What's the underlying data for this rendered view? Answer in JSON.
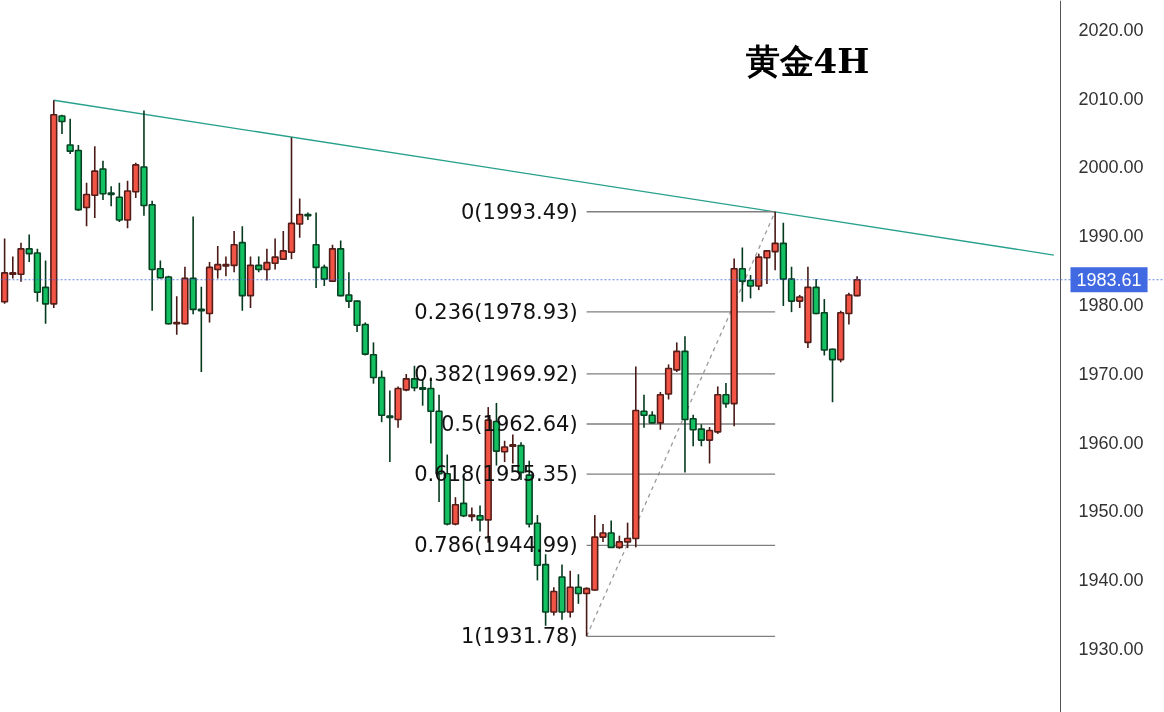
{
  "chart_data": {
    "type": "candlestick",
    "title": "黄金4H",
    "categories": [
      null,
      null,
      null,
      null,
      null,
      null,
      null,
      null,
      null,
      null,
      null,
      null,
      null,
      null,
      null,
      null,
      null,
      null,
      null,
      null,
      null,
      null,
      null,
      null,
      null,
      null,
      null,
      null,
      null,
      null,
      null,
      null,
      null,
      null,
      null,
      null,
      null,
      null,
      null,
      null,
      null,
      null,
      null,
      null,
      null,
      null,
      null,
      null,
      null,
      null,
      null,
      null,
      null,
      null,
      null,
      null,
      null,
      null,
      null,
      null,
      null,
      null,
      null,
      null,
      null,
      null,
      null,
      null,
      null,
      null,
      null,
      null,
      null,
      null,
      null,
      null,
      null,
      null,
      null,
      null,
      null,
      null,
      null,
      null,
      null,
      null,
      null,
      null,
      null,
      null,
      null,
      null,
      null,
      null,
      null,
      null,
      null,
      null,
      null,
      null,
      null,
      null,
      null,
      null,
      null,
      null,
      null,
      null,
      null,
      null,
      null,
      null,
      null,
      null,
      null,
      null,
      null,
      null,
      null,
      null,
      null,
      null,
      null,
      null,
      null,
      null,
      null,
      null,
      null,
      null,
      null,
      null,
      null,
      null,
      null,
      null,
      null,
      null,
      null,
      null,
      null,
      null
    ],
    "ohlc": [
      [
        1980.4,
        1989.6,
        1980.1,
        1984.6
      ],
      [
        1984.4,
        1987.0,
        1983.8,
        1984.6
      ],
      [
        1984.4,
        1989.0,
        1983.3,
        1988.1
      ],
      [
        1988.1,
        1990.2,
        1986.2,
        1987.4
      ],
      [
        1987.5,
        1988.1,
        1980.4,
        1981.8
      ],
      [
        1982.5,
        1986.4,
        1977.2,
        1980.1
      ],
      [
        1980.1,
        2009.7,
        1979.5,
        2007.6
      ],
      [
        2007.4,
        2007.6,
        2004.8,
        2006.6
      ],
      [
        2003.2,
        2007.0,
        2001.9,
        2002.3
      ],
      [
        2002.4,
        2003.2,
        1993.6,
        1993.8
      ],
      [
        1994.1,
        1997.7,
        1991.4,
        1996.0
      ],
      [
        1995.9,
        2003.0,
        1992.6,
        1999.4
      ],
      [
        1999.7,
        2000.9,
        1995.2,
        1996.1
      ],
      [
        1996.2,
        1997.2,
        1994.3,
        1996.0
      ],
      [
        1995.6,
        1997.7,
        1992.0,
        1992.3
      ],
      [
        1992.3,
        1998.0,
        1991.1,
        1996.5
      ],
      [
        1996.4,
        2000.6,
        1995.5,
        2000.3
      ],
      [
        2000.0,
        2008.2,
        1992.9,
        1994.4
      ],
      [
        1994.5,
        1995.1,
        1979.1,
        1985.1
      ],
      [
        1985.2,
        1986.4,
        1983.8,
        1983.9
      ],
      [
        1984.0,
        1984.2,
        1977.1,
        1977.2
      ],
      [
        1977.2,
        1981.2,
        1975.6,
        1977.4
      ],
      [
        1977.2,
        1985.5,
        1977.1,
        1983.8
      ],
      [
        1983.8,
        1992.8,
        1978.6,
        1979.3
      ],
      [
        1979.3,
        1982.6,
        1970.2,
        1979.1
      ],
      [
        1978.7,
        1986.2,
        1977.4,
        1985.4
      ],
      [
        1985.1,
        1988.5,
        1983.8,
        1985.8
      ],
      [
        1985.6,
        1987.0,
        1984.1,
        1985.8
      ],
      [
        1985.7,
        1990.7,
        1984.7,
        1988.7
      ],
      [
        1989.0,
        1991.4,
        1979.1,
        1981.3
      ],
      [
        1981.3,
        1987.0,
        1979.5,
        1985.7
      ],
      [
        1985.7,
        1987.0,
        1984.7,
        1985.1
      ],
      [
        1985.1,
        1988.1,
        1983.5,
        1986.1
      ],
      [
        1986.0,
        1989.6,
        1985.1,
        1986.9
      ],
      [
        1986.6,
        1990.7,
        1986.5,
        1987.8
      ],
      [
        1987.6,
        2004.3,
        1986.6,
        1991.8
      ],
      [
        1991.7,
        1995.4,
        1989.7,
        1993.1
      ],
      [
        1993.1,
        1993.4,
        1992.3,
        1992.9
      ],
      [
        1988.7,
        1993.4,
        1982.4,
        1985.4
      ],
      [
        1985.4,
        1985.8,
        1982.7,
        1983.7
      ],
      [
        1983.4,
        1988.7,
        1983.3,
        1988.1
      ],
      [
        1988.1,
        1989.3,
        1981.2,
        1981.3
      ],
      [
        1981.4,
        1984.7,
        1979.5,
        1980.5
      ],
      [
        1980.5,
        1980.6,
        1976.0,
        1977.0
      ],
      [
        1977.1,
        1977.4,
        1972.6,
        1972.8
      ],
      [
        1972.7,
        1974.5,
        1968.5,
        1969.4
      ],
      [
        1969.4,
        1970.4,
        1962.9,
        1963.9
      ],
      [
        1963.8,
        1967.5,
        1957.1,
        1963.6
      ],
      [
        1963.3,
        1968.1,
        1962.1,
        1967.8
      ],
      [
        1967.6,
        1969.9,
        1967.4,
        1969.2
      ],
      [
        1969.2,
        1971.1,
        1967.4,
        1967.9
      ],
      [
        1967.9,
        1969.2,
        1965.3,
        1967.7
      ],
      [
        1967.8,
        1969.4,
        1959.8,
        1964.5
      ],
      [
        1964.5,
        1966.9,
        1951.3,
        1955.4
      ],
      [
        1955.4,
        1958.2,
        1947.9,
        1948.1
      ],
      [
        1948.1,
        1952.0,
        1947.9,
        1950.9
      ],
      [
        1951.1,
        1955.4,
        1949.1,
        1949.3
      ],
      [
        1949.2,
        1950.5,
        1948.5,
        1949.4
      ],
      [
        1949.3,
        1950.8,
        1947.0,
        1948.7
      ],
      [
        1948.7,
        1965.1,
        1945.4,
        1963.2
      ],
      [
        1963.0,
        1965.7,
        1956.6,
        1958.7
      ],
      [
        1958.6,
        1960.2,
        1957.1,
        1959.3
      ],
      [
        1959.4,
        1961.1,
        1956.9,
        1959.6
      ],
      [
        1959.5,
        1960.0,
        1954.5,
        1955.6
      ],
      [
        1955.2,
        1957.3,
        1947.6,
        1948.1
      ],
      [
        1948.2,
        1949.4,
        1939.9,
        1942.1
      ],
      [
        1942.2,
        1943.7,
        1933.3,
        1935.3
      ],
      [
        1935.3,
        1938.9,
        1934.8,
        1938.3
      ],
      [
        1940.4,
        1942.2,
        1934.2,
        1935.3
      ],
      [
        1935.3,
        1941.3,
        1934.5,
        1938.9
      ],
      [
        1938.9,
        1940.8,
        1936.5,
        1938.0
      ],
      [
        1938.0,
        1938.9,
        1931.78,
        1938.7
      ],
      [
        1938.5,
        1949.4,
        1938.4,
        1946.2
      ],
      [
        1946.2,
        1948.1,
        1945.5,
        1946.8
      ],
      [
        1946.8,
        1948.6,
        1944.6,
        1944.7
      ],
      [
        1944.7,
        1946.4,
        1944.5,
        1945.5
      ],
      [
        1945.5,
        1948.3,
        1944.6,
        1946.0
      ],
      [
        1946.0,
        1971.0,
        1944.7,
        1964.6
      ],
      [
        1964.5,
        1966.9,
        1962.1,
        1963.9
      ],
      [
        1963.9,
        1964.5,
        1962.7,
        1962.8
      ],
      [
        1962.8,
        1967.3,
        1961.8,
        1966.9
      ],
      [
        1967.0,
        1971.3,
        1966.2,
        1970.7
      ],
      [
        1970.5,
        1974.5,
        1970.2,
        1973.2
      ],
      [
        1973.2,
        1975.4,
        1955.6,
        1963.3
      ],
      [
        1963.4,
        1964.0,
        1959.4,
        1961.8
      ],
      [
        1961.9,
        1962.6,
        1959.4,
        1960.3
      ],
      [
        1960.3,
        1962.2,
        1956.9,
        1961.7
      ],
      [
        1961.5,
        1968.1,
        1961.2,
        1966.9
      ],
      [
        1966.9,
        1968.6,
        1965.0,
        1965.6
      ],
      [
        1965.6,
        1986.7,
        1962.3,
        1985.2
      ],
      [
        1985.2,
        1988.3,
        1980.4,
        1983.4
      ],
      [
        1983.5,
        1984.3,
        1980.9,
        1982.7
      ],
      [
        1982.7,
        1987.4,
        1982.1,
        1986.9
      ],
      [
        1986.8,
        1987.9,
        1983.0,
        1987.8
      ],
      [
        1987.7,
        1993.49,
        1985.0,
        1988.9
      ],
      [
        1988.9,
        1991.9,
        1979.8,
        1983.7
      ],
      [
        1983.7,
        1985.5,
        1978.9,
        1980.5
      ],
      [
        1980.5,
        1981.4,
        1979.5,
        1981.1
      ],
      [
        1974.5,
        1985.5,
        1973.7,
        1982.5
      ],
      [
        1982.5,
        1983.7,
        1978.6,
        1978.7
      ],
      [
        1978.8,
        1980.8,
        1972.6,
        1973.4
      ],
      [
        1973.5,
        1973.6,
        1965.8,
        1972.0
      ],
      [
        1972.0,
        1979.1,
        1971.6,
        1978.8
      ],
      [
        1978.7,
        1981.7,
        1977.1,
        1981.4
      ],
      [
        1981.3,
        1984.1,
        1981.2,
        1983.61
      ],
      null,
      null,
      null,
      null,
      null,
      null,
      null,
      null,
      null,
      null,
      null,
      null,
      null,
      null,
      null,
      null,
      null,
      null,
      null,
      null,
      null,
      null,
      null,
      null,
      null,
      null,
      null,
      null,
      null,
      null,
      null,
      null,
      null,
      null,
      null,
      null,
      null
    ],
    "colors": [
      "#f25546",
      "#f25546",
      "#f25546",
      "#13c162",
      "#13c162",
      "#13c162",
      "#f25546",
      "#13c162",
      "#13c162",
      "#13c162",
      "#f25546",
      "#f25546",
      "#13c162",
      "#13c162",
      "#13c162",
      "#f25546",
      "#f25546",
      "#13c162",
      "#13c162",
      "#13c162",
      "#13c162",
      "#f25546",
      "#f25546",
      "#13c162",
      "#13c162",
      "#f25546",
      "#f25546",
      "#f25546",
      "#f25546",
      "#13c162",
      "#f25546",
      "#13c162",
      "#f25546",
      "#f25546",
      "#f25546",
      "#f25546",
      "#f25546",
      "#13c162",
      "#13c162",
      "#13c162",
      "#f25546",
      "#13c162",
      "#13c162",
      "#13c162",
      "#13c162",
      "#13c162",
      "#13c162",
      "#13c162",
      "#f25546",
      "#f25546",
      "#13c162",
      "#13c162",
      "#13c162",
      "#13c162",
      "#13c162",
      "#f25546",
      "#13c162",
      "#f25546",
      "#13c162",
      "#f25546",
      "#13c162",
      "#f25546",
      "#f25546",
      "#13c162",
      "#13c162",
      "#13c162",
      "#13c162",
      "#f25546",
      "#13c162",
      "#f25546",
      "#13c162",
      "#f25546",
      "#f25546",
      "#f25546",
      "#13c162",
      "#f25546",
      "#f25546",
      "#f25546",
      "#13c162",
      "#13c162",
      "#f25546",
      "#f25546",
      "#f25546",
      "#13c162",
      "#13c162",
      "#13c162",
      "#f25546",
      "#f25546",
      "#13c162",
      "#f25546",
      "#13c162",
      "#13c162",
      "#f25546",
      "#f25546",
      "#f25546",
      "#13c162",
      "#13c162",
      "#f25546",
      "#f25546",
      "#13c162",
      "#13c162",
      "#13c162",
      "#f25546",
      "#f25546",
      "#f25546",
      null,
      null,
      null,
      null,
      null,
      null,
      null,
      null,
      null,
      null,
      null,
      null,
      null,
      null,
      null,
      null,
      null,
      null,
      null,
      null,
      null,
      null,
      null,
      null,
      null,
      null,
      null,
      null,
      null,
      null,
      null,
      null,
      null,
      null,
      null,
      null,
      null
    ],
    "series": [
      {
        "type": "line",
        "color": "#26a08c",
        "values": [
          null,
          null,
          null,
          null,
          null,
          null,
          2009.7,
          null,
          null,
          null,
          null,
          null,
          null,
          null,
          null,
          null,
          null,
          null,
          null,
          null,
          null,
          null,
          null,
          null,
          null,
          null,
          null,
          null,
          null,
          null,
          null,
          null,
          null,
          null,
          null,
          null,
          null,
          null,
          null,
          null,
          null,
          null,
          null,
          null,
          null,
          null,
          null,
          null,
          null,
          null,
          null,
          null,
          null,
          null,
          null,
          null,
          null,
          null,
          null,
          null,
          null,
          null,
          null,
          null,
          null,
          null,
          null,
          null,
          null,
          null,
          null,
          null,
          null,
          null,
          null,
          null,
          null,
          null,
          null,
          null,
          null,
          null,
          null,
          null,
          null,
          null,
          null,
          null,
          null,
          null,
          null,
          null,
          null,
          null,
          null,
          null,
          null,
          null,
          null,
          null,
          null,
          null,
          null,
          null,
          null,
          null,
          null,
          null,
          null,
          null,
          null,
          null,
          null,
          null,
          null,
          null,
          null,
          null,
          null,
          null,
          null,
          null,
          null,
          null,
          null,
          null,
          null,
          null,
          1987.2,
          null,
          null,
          null,
          null,
          null,
          null,
          null,
          null,
          null,
          null,
          null,
          null,
          null
        ]
      },
      {
        "type": "line",
        "color": "#9a9a9a",
        "line_style": "dashed",
        "values": [
          null,
          null,
          null,
          null,
          null,
          null,
          null,
          null,
          null,
          null,
          null,
          null,
          null,
          null,
          null,
          null,
          null,
          null,
          null,
          null,
          null,
          null,
          null,
          null,
          null,
          null,
          null,
          null,
          null,
          null,
          null,
          null,
          null,
          null,
          null,
          null,
          null,
          null,
          null,
          null,
          null,
          null,
          null,
          null,
          null,
          null,
          null,
          null,
          null,
          null,
          null,
          null,
          null,
          null,
          null,
          null,
          null,
          null,
          null,
          null,
          null,
          null,
          null,
          null,
          null,
          null,
          null,
          null,
          null,
          null,
          null,
          1931.78,
          null,
          null,
          null,
          null,
          null,
          null,
          null,
          null,
          null,
          null,
          null,
          null,
          null,
          null,
          null,
          null,
          null,
          null,
          null,
          null,
          null,
          null,
          1993.49,
          null,
          null,
          null,
          null,
          null,
          null,
          null,
          null,
          null,
          null,
          null,
          null,
          null,
          null,
          null,
          null,
          null,
          null,
          null,
          null,
          null,
          null,
          null,
          null,
          null,
          null,
          null,
          null,
          null,
          null,
          null,
          null,
          null,
          null,
          null,
          null,
          null,
          null,
          null,
          null,
          null,
          null,
          null,
          null,
          null,
          null,
          null
        ]
      },
      {
        "type": "line",
        "name": "0(1993.49)",
        "color": "#7f7f7f",
        "values": [
          null,
          null,
          null,
          null,
          null,
          null,
          null,
          null,
          null,
          null,
          null,
          null,
          null,
          null,
          null,
          null,
          null,
          null,
          null,
          null,
          null,
          null,
          null,
          null,
          null,
          null,
          null,
          null,
          null,
          null,
          null,
          null,
          null,
          null,
          null,
          null,
          null,
          null,
          null,
          null,
          null,
          null,
          null,
          null,
          null,
          null,
          null,
          null,
          null,
          null,
          null,
          null,
          null,
          null,
          null,
          null,
          null,
          null,
          null,
          null,
          null,
          null,
          null,
          null,
          null,
          null,
          null,
          null,
          null,
          null,
          null,
          1993.49,
          null,
          null,
          null,
          null,
          null,
          null,
          null,
          null,
          null,
          null,
          null,
          null,
          null,
          null,
          null,
          null,
          null,
          null,
          null,
          null,
          null,
          null,
          1993.49,
          null,
          null,
          null,
          null,
          null,
          null,
          null,
          null,
          null,
          null,
          null,
          null,
          null,
          null,
          null,
          null,
          null,
          null,
          null,
          null,
          null,
          null,
          null,
          null,
          null,
          null,
          null,
          null,
          null,
          null,
          null,
          null,
          null,
          null,
          null,
          null,
          null,
          null,
          null,
          null,
          null,
          null,
          null,
          null,
          null,
          null,
          null
        ]
      },
      {
        "type": "line",
        "name": "0.236(1978.93)",
        "color": "#7f7f7f",
        "values": [
          null,
          null,
          null,
          null,
          null,
          null,
          null,
          null,
          null,
          null,
          null,
          null,
          null,
          null,
          null,
          null,
          null,
          null,
          null,
          null,
          null,
          null,
          null,
          null,
          null,
          null,
          null,
          null,
          null,
          null,
          null,
          null,
          null,
          null,
          null,
          null,
          null,
          null,
          null,
          null,
          null,
          null,
          null,
          null,
          null,
          null,
          null,
          null,
          null,
          null,
          null,
          null,
          null,
          null,
          null,
          null,
          null,
          null,
          null,
          null,
          null,
          null,
          null,
          null,
          null,
          null,
          null,
          null,
          null,
          null,
          null,
          1978.93,
          null,
          null,
          null,
          null,
          null,
          null,
          null,
          null,
          null,
          null,
          null,
          null,
          null,
          null,
          null,
          null,
          null,
          null,
          null,
          null,
          null,
          null,
          1978.93,
          null,
          null,
          null,
          null,
          null,
          null,
          null,
          null,
          null,
          null,
          null,
          null,
          null,
          null,
          null,
          null,
          null,
          null,
          null,
          null,
          null,
          null,
          null,
          null,
          null,
          null,
          null,
          null,
          null,
          null,
          null,
          null,
          null,
          null,
          null,
          null,
          null,
          null,
          null,
          null,
          null,
          null,
          null,
          null,
          null,
          null,
          null
        ]
      },
      {
        "type": "line",
        "name": "0.382(1969.92)",
        "color": "#7f7f7f",
        "values": [
          null,
          null,
          null,
          null,
          null,
          null,
          null,
          null,
          null,
          null,
          null,
          null,
          null,
          null,
          null,
          null,
          null,
          null,
          null,
          null,
          null,
          null,
          null,
          null,
          null,
          null,
          null,
          null,
          null,
          null,
          null,
          null,
          null,
          null,
          null,
          null,
          null,
          null,
          null,
          null,
          null,
          null,
          null,
          null,
          null,
          null,
          null,
          null,
          null,
          null,
          null,
          null,
          null,
          null,
          null,
          null,
          null,
          null,
          null,
          null,
          null,
          null,
          null,
          null,
          null,
          null,
          null,
          null,
          null,
          null,
          null,
          1969.92,
          null,
          null,
          null,
          null,
          null,
          null,
          null,
          null,
          null,
          null,
          null,
          null,
          null,
          null,
          null,
          null,
          null,
          null,
          null,
          null,
          null,
          null,
          1969.92,
          null,
          null,
          null,
          null,
          null,
          null,
          null,
          null,
          null,
          null,
          null,
          null,
          null,
          null,
          null,
          null,
          null,
          null,
          null,
          null,
          null,
          null,
          null,
          null,
          null,
          null,
          null,
          null,
          null,
          null,
          null,
          null,
          null,
          null,
          null,
          null,
          null,
          null,
          null,
          null,
          null,
          null,
          null,
          null,
          null,
          null,
          null
        ]
      },
      {
        "type": "line",
        "name": "0.5(1962.64)",
        "color": "#7f7f7f",
        "values": [
          null,
          null,
          null,
          null,
          null,
          null,
          null,
          null,
          null,
          null,
          null,
          null,
          null,
          null,
          null,
          null,
          null,
          null,
          null,
          null,
          null,
          null,
          null,
          null,
          null,
          null,
          null,
          null,
          null,
          null,
          null,
          null,
          null,
          null,
          null,
          null,
          null,
          null,
          null,
          null,
          null,
          null,
          null,
          null,
          null,
          null,
          null,
          null,
          null,
          null,
          null,
          null,
          null,
          null,
          null,
          null,
          null,
          null,
          null,
          null,
          null,
          null,
          null,
          null,
          null,
          null,
          null,
          null,
          null,
          null,
          null,
          1962.64,
          null,
          null,
          null,
          null,
          null,
          null,
          null,
          null,
          null,
          null,
          null,
          null,
          null,
          null,
          null,
          null,
          null,
          null,
          null,
          null,
          null,
          null,
          1962.64,
          null,
          null,
          null,
          null,
          null,
          null,
          null,
          null,
          null,
          null,
          null,
          null,
          null,
          null,
          null,
          null,
          null,
          null,
          null,
          null,
          null,
          null,
          null,
          null,
          null,
          null,
          null,
          null,
          null,
          null,
          null,
          null,
          null,
          null,
          null,
          null,
          null,
          null,
          null,
          null,
          null,
          null,
          null,
          null,
          null,
          null,
          null
        ]
      },
      {
        "type": "line",
        "name": "0.618(1955.35)",
        "color": "#7f7f7f",
        "values": [
          null,
          null,
          null,
          null,
          null,
          null,
          null,
          null,
          null,
          null,
          null,
          null,
          null,
          null,
          null,
          null,
          null,
          null,
          null,
          null,
          null,
          null,
          null,
          null,
          null,
          null,
          null,
          null,
          null,
          null,
          null,
          null,
          null,
          null,
          null,
          null,
          null,
          null,
          null,
          null,
          null,
          null,
          null,
          null,
          null,
          null,
          null,
          null,
          null,
          null,
          null,
          null,
          null,
          null,
          null,
          null,
          null,
          null,
          null,
          null,
          null,
          null,
          null,
          null,
          null,
          null,
          null,
          null,
          null,
          null,
          null,
          1955.35,
          null,
          null,
          null,
          null,
          null,
          null,
          null,
          null,
          null,
          null,
          null,
          null,
          null,
          null,
          null,
          null,
          null,
          null,
          null,
          null,
          null,
          null,
          1955.35,
          null,
          null,
          null,
          null,
          null,
          null,
          null,
          null,
          null,
          null,
          null,
          null,
          null,
          null,
          null,
          null,
          null,
          null,
          null,
          null,
          null,
          null,
          null,
          null,
          null,
          null,
          null,
          null,
          null,
          null,
          null,
          null,
          null,
          null,
          null,
          null,
          null,
          null,
          null,
          null,
          null,
          null,
          null,
          null,
          null,
          null,
          null
        ]
      },
      {
        "type": "line",
        "name": "0.786(1944.99)",
        "color": "#7f7f7f",
        "values": [
          null,
          null,
          null,
          null,
          null,
          null,
          null,
          null,
          null,
          null,
          null,
          null,
          null,
          null,
          null,
          null,
          null,
          null,
          null,
          null,
          null,
          null,
          null,
          null,
          null,
          null,
          null,
          null,
          null,
          null,
          null,
          null,
          null,
          null,
          null,
          null,
          null,
          null,
          null,
          null,
          null,
          null,
          null,
          null,
          null,
          null,
          null,
          null,
          null,
          null,
          null,
          null,
          null,
          null,
          null,
          null,
          null,
          null,
          null,
          null,
          null,
          null,
          null,
          null,
          null,
          null,
          null,
          null,
          null,
          null,
          null,
          1944.99,
          null,
          null,
          null,
          null,
          null,
          null,
          null,
          null,
          null,
          null,
          null,
          null,
          null,
          null,
          null,
          null,
          null,
          null,
          null,
          null,
          null,
          null,
          1944.99,
          null,
          null,
          null,
          null,
          null,
          null,
          null,
          null,
          null,
          null,
          null,
          null,
          null,
          null,
          null,
          null,
          null,
          null,
          null,
          null,
          null,
          null,
          null,
          null,
          null,
          null,
          null,
          null,
          null,
          null,
          null,
          null,
          null,
          null,
          null,
          null,
          null,
          null,
          null,
          null,
          null,
          null,
          null,
          null,
          null,
          null,
          null
        ]
      },
      {
        "type": "line",
        "name": "1(1931.78)",
        "color": "#7f7f7f",
        "values": [
          null,
          null,
          null,
          null,
          null,
          null,
          null,
          null,
          null,
          null,
          null,
          null,
          null,
          null,
          null,
          null,
          null,
          null,
          null,
          null,
          null,
          null,
          null,
          null,
          null,
          null,
          null,
          null,
          null,
          null,
          null,
          null,
          null,
          null,
          null,
          null,
          null,
          null,
          null,
          null,
          null,
          null,
          null,
          null,
          null,
          null,
          null,
          null,
          null,
          null,
          null,
          null,
          null,
          null,
          null,
          null,
          null,
          null,
          null,
          null,
          null,
          null,
          null,
          null,
          null,
          null,
          null,
          null,
          null,
          null,
          null,
          1931.78,
          null,
          null,
          null,
          null,
          null,
          null,
          null,
          null,
          null,
          null,
          null,
          null,
          null,
          null,
          null,
          null,
          null,
          null,
          null,
          null,
          null,
          null,
          1931.78,
          null,
          null,
          null,
          null,
          null,
          null,
          null,
          null,
          null,
          null,
          null,
          null,
          null,
          null,
          null,
          null,
          null,
          null,
          null,
          null,
          null,
          null,
          null,
          null,
          null,
          null,
          null,
          null,
          null,
          null,
          null,
          null,
          null,
          null,
          null,
          null,
          null,
          null,
          null,
          null,
          null,
          null,
          null,
          null,
          null,
          null,
          null
        ]
      }
    ],
    "ref_lines": [
      {
        "axis": "y",
        "value": 1983.61,
        "label": "1983.61",
        "color": "#4169e1",
        "line_style": "dotted"
      }
    ],
    "ylim": [
      1920.7,
      2024.2
    ],
    "yticks": [
      {
        "value": 1930,
        "label": "1930.00"
      },
      {
        "value": 1940,
        "label": "1940.00"
      },
      {
        "value": 1950,
        "label": "1950.00"
      },
      {
        "value": 1960,
        "label": "1960.00"
      },
      {
        "value": 1970,
        "label": "1970.00"
      },
      {
        "value": 1980,
        "label": "1980.00"
      },
      {
        "value": 1990,
        "label": "1990.00"
      },
      {
        "value": 2000,
        "label": "2000.00"
      },
      {
        "value": 2010,
        "label": "2010.00"
      },
      {
        "value": 2020,
        "label": "2020.00"
      }
    ],
    "tick_labels": "y"
  }
}
